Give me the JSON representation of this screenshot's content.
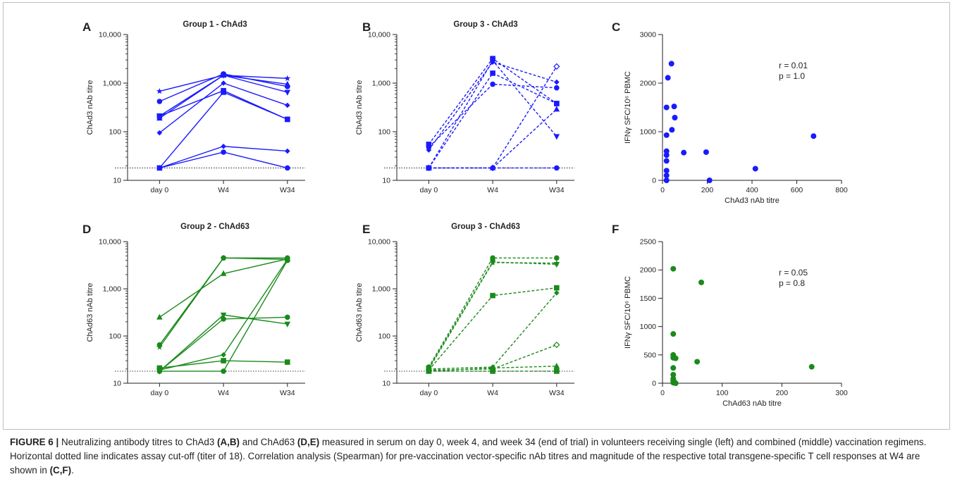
{
  "figure_caption": {
    "figure_label": "FIGURE 6 |",
    "text_1": " Neutralizing antibody titres to ChAd3 ",
    "bold_1": "(A,B)",
    "text_2": " and ChAd63 ",
    "bold_2": "(D,E)",
    "text_3": " measured in serum on day 0, week 4, and week 34 (end of trial) in volunteers receiving single (left) and combined (middle) vaccination regimens. Horizontal dotted line indicates assay cut-off (titer of 18). Correlation analysis (Spearman) for pre-vaccination vector-specific nAb titres and magnitude of the respective total transgene-specific T cell responses at W4 are shown in ",
    "bold_3": "(C,F)",
    "text_4": "."
  },
  "colors": {
    "blue": "#1a1aff",
    "green": "#1a8a1a",
    "axis": "#231f20"
  },
  "chart_data": [
    {
      "panel": "A",
      "type": "line",
      "title": "Group 1 - ChAd3",
      "xlabel": "",
      "ylabel": "ChAd3 nAb titre",
      "categories": [
        "day 0",
        "W4",
        "W34"
      ],
      "yscale": "log",
      "ylim": [
        10,
        10000
      ],
      "yticks": [
        10,
        100,
        1000,
        10000
      ],
      "ytick_labels": [
        "10",
        "100",
        "1,000",
        "10,000"
      ],
      "cutoff": 18,
      "line_style": "solid",
      "color": "#1a1aff",
      "series": [
        {
          "marker": "star",
          "values": [
            680,
            1450,
            1250
          ]
        },
        {
          "marker": "circle",
          "values": [
            420,
            1550,
            850
          ]
        },
        {
          "marker": "square",
          "values": [
            210,
            700,
            180
          ]
        },
        {
          "marker": "triangle-down",
          "values": [
            210,
            1450,
            650
          ]
        },
        {
          "marker": "triangle-up",
          "values": [
            190,
            1450,
            950
          ]
        },
        {
          "marker": "diamond",
          "values": [
            95,
            1000,
            350
          ]
        },
        {
          "marker": "square",
          "values": [
            18,
            650,
            180
          ]
        },
        {
          "marker": "diamond",
          "values": [
            18,
            50,
            40
          ]
        },
        {
          "marker": "circle",
          "values": [
            18,
            38,
            18
          ]
        }
      ]
    },
    {
      "panel": "B",
      "type": "line",
      "title": "Group 3 - ChAd3",
      "xlabel": "",
      "ylabel": "ChAd3 nAb titre",
      "categories": [
        "day 0",
        "W4",
        "W34"
      ],
      "yscale": "log",
      "ylim": [
        10,
        10000
      ],
      "yticks": [
        10,
        100,
        1000,
        10000
      ],
      "ytick_labels": [
        "10",
        "100",
        "1,000",
        "10,000"
      ],
      "cutoff": 18,
      "line_style": "dashed",
      "color": "#1a1aff",
      "series": [
        {
          "marker": "square",
          "values": [
            55,
            3200,
            380
          ]
        },
        {
          "marker": "circle",
          "values": [
            48,
            950,
            800
          ]
        },
        {
          "marker": "diamond",
          "values": [
            42,
            2700,
            1050
          ]
        },
        {
          "marker": "square",
          "values": [
            18,
            1600,
            380
          ]
        },
        {
          "marker": "triangle-down",
          "values": [
            18,
            2900,
            80
          ]
        },
        {
          "marker": "triangle-up",
          "values": [
            18,
            18,
            290
          ]
        },
        {
          "marker": "diamond-open",
          "values": [
            18,
            18,
            2200
          ]
        },
        {
          "marker": "circle",
          "values": [
            18,
            18,
            18
          ]
        }
      ]
    },
    {
      "panel": "C",
      "type": "scatter",
      "title": "",
      "xlabel": "ChAd3 nAb titre",
      "ylabel": "IFNγ SFC/10⁶ PBMC",
      "xlim": [
        0,
        800
      ],
      "xticks": [
        0,
        200,
        400,
        600,
        800
      ],
      "ylim": [
        0,
        3000
      ],
      "yticks": [
        0,
        1000,
        2000,
        3000
      ],
      "color": "#1a1aff",
      "stat_r": "r = 0.01",
      "stat_p": "p = 1.0",
      "points": [
        {
          "x": 18,
          "y": 0
        },
        {
          "x": 18,
          "y": 100
        },
        {
          "x": 18,
          "y": 200
        },
        {
          "x": 18,
          "y": 400
        },
        {
          "x": 18,
          "y": 520
        },
        {
          "x": 18,
          "y": 600
        },
        {
          "x": 18,
          "y": 930
        },
        {
          "x": 18,
          "y": 1500
        },
        {
          "x": 24,
          "y": 2110
        },
        {
          "x": 40,
          "y": 2400
        },
        {
          "x": 42,
          "y": 1040
        },
        {
          "x": 52,
          "y": 1520
        },
        {
          "x": 55,
          "y": 1290
        },
        {
          "x": 95,
          "y": 570
        },
        {
          "x": 195,
          "y": 580
        },
        {
          "x": 210,
          "y": 0
        },
        {
          "x": 415,
          "y": 240
        },
        {
          "x": 675,
          "y": 910
        }
      ]
    },
    {
      "panel": "D",
      "type": "line",
      "title": "Group 2 - ChAd63",
      "xlabel": "",
      "ylabel": "ChAd63 nAb titre",
      "categories": [
        "day 0",
        "W4",
        "W34"
      ],
      "yscale": "log",
      "ylim": [
        10,
        10000
      ],
      "yticks": [
        10,
        100,
        1000,
        10000
      ],
      "ytick_labels": [
        "10",
        "100",
        "1,000",
        "10,000"
      ],
      "cutoff": 18,
      "line_style": "solid",
      "color": "#1a8a1a",
      "series": [
        {
          "marker": "triangle-up",
          "values": [
            250,
            2100,
            4300
          ]
        },
        {
          "marker": "circle",
          "values": [
            65,
            4500,
            4500
          ]
        },
        {
          "marker": "star",
          "values": [
            58,
            4500,
            4200
          ]
        },
        {
          "marker": "square",
          "values": [
            21,
            30,
            28
          ]
        },
        {
          "marker": "triangle-down",
          "values": [
            18,
            280,
            180
          ]
        },
        {
          "marker": "circle",
          "values": [
            18,
            230,
            250
          ]
        },
        {
          "marker": "diamond",
          "values": [
            19,
            40,
            4200
          ]
        },
        {
          "marker": "circle",
          "values": [
            18,
            18,
            4000
          ]
        }
      ]
    },
    {
      "panel": "E",
      "type": "line",
      "title": "Group 3 - ChAd63",
      "xlabel": "",
      "ylabel": "ChAd63 nAb titre",
      "categories": [
        "day 0",
        "W4",
        "W34"
      ],
      "yscale": "log",
      "ylim": [
        10,
        10000
      ],
      "yticks": [
        10,
        100,
        1000,
        10000
      ],
      "ytick_labels": [
        "10",
        "100",
        "1,000",
        "10,000"
      ],
      "cutoff": 18,
      "line_style": "dashed",
      "color": "#1a8a1a",
      "series": [
        {
          "marker": "circle",
          "values": [
            22,
            4500,
            4500
          ]
        },
        {
          "marker": "triangle-down",
          "values": [
            21,
            3700,
            3300
          ]
        },
        {
          "marker": "star",
          "values": [
            20,
            3600,
            3500
          ]
        },
        {
          "marker": "square",
          "values": [
            19,
            720,
            1050
          ]
        },
        {
          "marker": "diamond",
          "values": [
            20,
            22,
            820
          ]
        },
        {
          "marker": "diamond-open",
          "values": [
            19,
            20,
            65
          ]
        },
        {
          "marker": "triangle-up",
          "values": [
            18,
            21,
            23
          ]
        },
        {
          "marker": "square",
          "values": [
            18,
            18,
            18
          ]
        }
      ]
    },
    {
      "panel": "F",
      "type": "scatter",
      "title": "",
      "xlabel": "ChAd63 nAb titre",
      "ylabel": "IFNγ SFC/10⁶ PBMC",
      "xlim": [
        0,
        300
      ],
      "xticks": [
        0,
        100,
        200,
        300
      ],
      "ylim": [
        0,
        2500
      ],
      "yticks": [
        0,
        500,
        1000,
        1500,
        2000,
        2500
      ],
      "color": "#1a8a1a",
      "stat_r": "r = 0.05",
      "stat_p": "p = 0.8",
      "points": [
        {
          "x": 18,
          "y": 2020
        },
        {
          "x": 18,
          "y": 870
        },
        {
          "x": 18,
          "y": 500
        },
        {
          "x": 18,
          "y": 450
        },
        {
          "x": 18,
          "y": 270
        },
        {
          "x": 18,
          "y": 150
        },
        {
          "x": 18,
          "y": 80
        },
        {
          "x": 18,
          "y": 40
        },
        {
          "x": 18,
          "y": 10
        },
        {
          "x": 22,
          "y": 440
        },
        {
          "x": 22,
          "y": 0
        },
        {
          "x": 20,
          "y": 20
        },
        {
          "x": 58,
          "y": 380
        },
        {
          "x": 65,
          "y": 1780
        },
        {
          "x": 250,
          "y": 290
        }
      ]
    }
  ]
}
